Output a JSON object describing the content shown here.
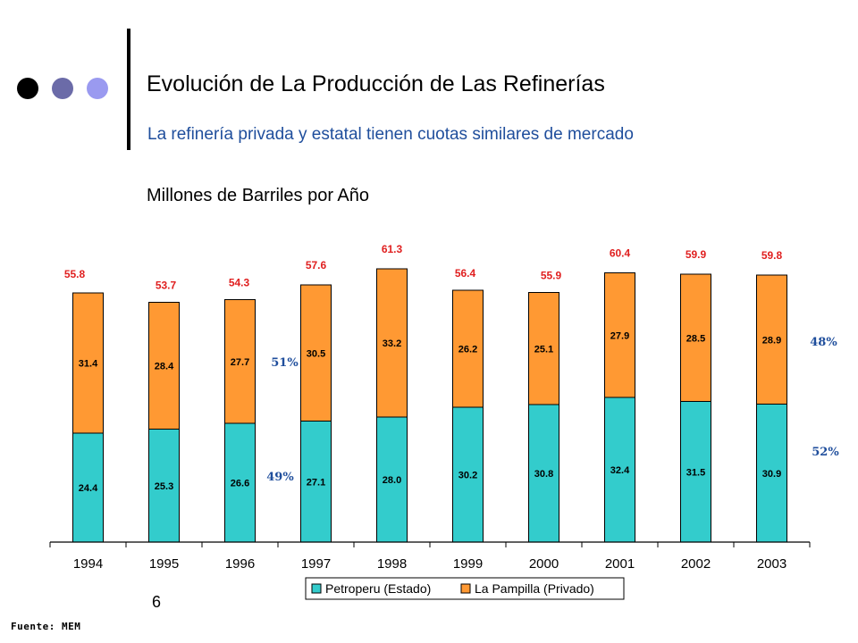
{
  "header": {
    "title": "Evolución de La Producción de Las Refinerías",
    "subtitle": "La refinería privada y estatal tienen cuotas similares de mercado",
    "unit_label": "Millones de Barriles por Año"
  },
  "decor": {
    "dot_colors": [
      "#000000",
      "#6b6ba8",
      "#9a9af0"
    ]
  },
  "colors": {
    "estado": "#33cccc",
    "privado": "#ff9933",
    "total_label": "#e02020",
    "share_label": "#1f4e9c"
  },
  "chart_data": {
    "type": "bar",
    "stacked": true,
    "categories": [
      "1994",
      "1995",
      "1996",
      "1997",
      "1998",
      "1999",
      "2000",
      "2001",
      "2002",
      "2003"
    ],
    "series": [
      {
        "name": "Petroperu (Estado)",
        "values": [
          24.4,
          25.3,
          26.6,
          27.1,
          28.0,
          30.2,
          30.8,
          32.4,
          31.5,
          30.9
        ]
      },
      {
        "name": "La Pampilla (Privado)",
        "values": [
          31.4,
          28.4,
          27.7,
          30.5,
          33.2,
          26.2,
          25.1,
          27.9,
          28.5,
          28.9
        ]
      }
    ],
    "totals": [
      55.8,
      53.7,
      54.3,
      57.6,
      61.3,
      56.4,
      55.9,
      60.4,
      59.9,
      59.8
    ],
    "ylim": [
      0,
      68
    ],
    "grid": false,
    "legend": "bottom",
    "annotations": [
      {
        "text": "51%",
        "category": "1996",
        "series": "La Pampilla (Privado)"
      },
      {
        "text": "49%",
        "category": "1996",
        "series": "Petroperu (Estado)"
      },
      {
        "text": "48%",
        "category": "2003",
        "series": "La Pampilla (Privado)"
      },
      {
        "text": "52%",
        "category": "2003",
        "series": "Petroperu (Estado)"
      }
    ]
  },
  "footer": {
    "page_number": "6",
    "source": "Fuente: MEM"
  }
}
